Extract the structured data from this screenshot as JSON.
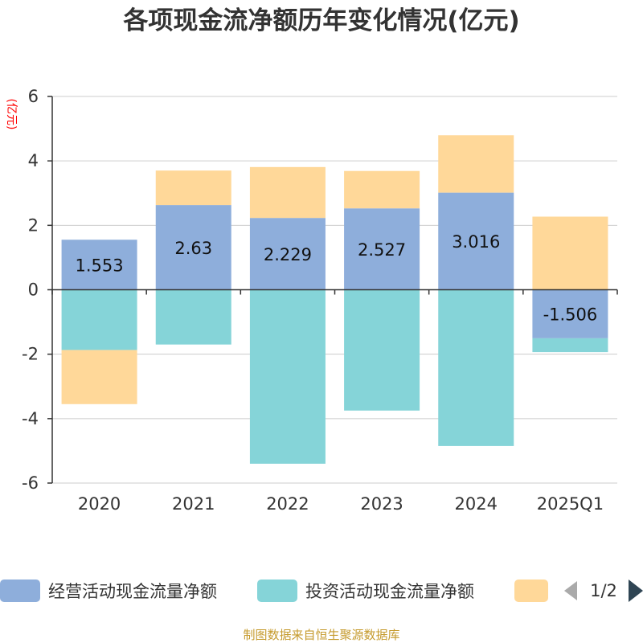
{
  "colors": {
    "operating": "#8eaedb",
    "investing": "#85d4d8",
    "financing": "#ffd899",
    "axis": "#333333",
    "grid": "#cccccc",
    "pager_active": "#2f4554",
    "pager_inactive": "#aaaaaa"
  },
  "chart_data": {
    "type": "bar",
    "stacked": true,
    "title": "各项现金流净额历年变化情况(亿元)",
    "ylabel": "(亿元)",
    "xlabel": "",
    "ylim": [
      -6,
      6
    ],
    "yticks": [
      6,
      4,
      2,
      0,
      -2,
      -4,
      -6
    ],
    "categories": [
      "2020",
      "2021",
      "2022",
      "2023",
      "2024",
      "2025Q1"
    ],
    "series": [
      {
        "name": "经营活动现金流量净额",
        "values": [
          1.553,
          2.63,
          2.229,
          2.527,
          3.016,
          -1.506
        ],
        "labels": [
          "1.553",
          "2.63",
          "2.229",
          "2.527",
          "3.016",
          "-1.506"
        ]
      },
      {
        "name": "投资活动现金流量净额",
        "values": [
          -1.87,
          -1.7,
          -5.4,
          -3.75,
          -4.85,
          -0.43
        ]
      },
      {
        "name": "",
        "values": [
          -1.68,
          1.07,
          1.58,
          1.16,
          1.78,
          2.27
        ]
      }
    ],
    "grid": true,
    "legend_position": "bottom"
  },
  "legend": {
    "items": [
      "经营活动现金流量净额",
      "投资活动现金流量净额",
      ""
    ],
    "page": "1/2"
  },
  "footer": {
    "source": "制图数据来自恒生聚源数据库"
  }
}
